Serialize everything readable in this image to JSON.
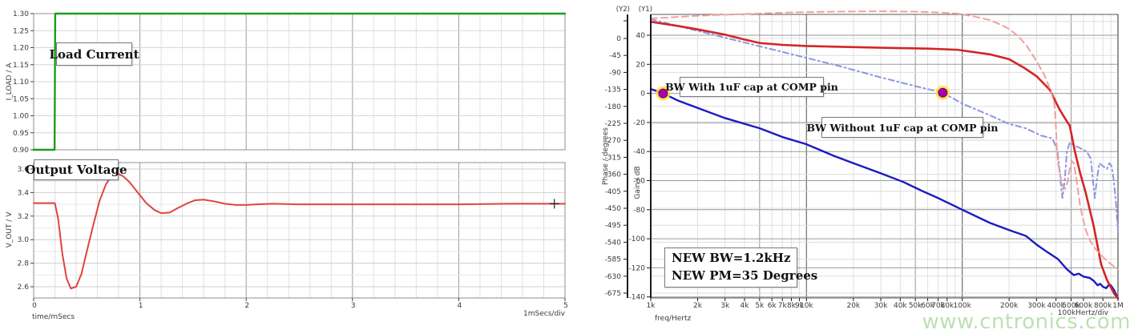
{
  "watermark": "www.cntronics.com",
  "chart_data": [
    {
      "id": "load-current",
      "type": "line",
      "title": "Load Current",
      "ylabel": "I_LOAD / A",
      "ylim": [
        0.9,
        1.3
      ],
      "xlim": [
        0,
        5
      ],
      "y_ticks": [
        "1.30",
        "1.25",
        "1.20",
        "1.15",
        "1.10",
        "1.05",
        "1.00",
        "0.95",
        "0.90"
      ],
      "grid": "on",
      "series": [
        {
          "name": "I_LOAD",
          "color": "#1f9b1f",
          "points": [
            [
              0,
              0.9
            ],
            [
              0.197,
              0.9
            ],
            [
              0.203,
              1.3
            ],
            [
              5,
              1.3
            ]
          ]
        }
      ]
    },
    {
      "id": "output-voltage",
      "type": "line",
      "title": "Output Voltage",
      "ylabel": "V_OUT / V",
      "xlabel": "time/mSecs",
      "x_div_label": "1mSecs/div",
      "ylim": [
        2.505,
        3.654
      ],
      "xlim": [
        0,
        5
      ],
      "x_ticks": [
        "0",
        "1",
        "2",
        "3",
        "4",
        "5"
      ],
      "y_ticks": [
        "3.6",
        "3.4",
        "3.2",
        "3.0",
        "2.8",
        "2.6"
      ],
      "grid": "on",
      "cursor": [
        4.9,
        3.305
      ],
      "series": [
        {
          "name": "V_OUT",
          "color": "#e04343",
          "points": [
            [
              0,
              3.31
            ],
            [
              0.2,
              3.31
            ],
            [
              0.23,
              3.18
            ],
            [
              0.27,
              2.88
            ],
            [
              0.31,
              2.67
            ],
            [
              0.35,
              2.585
            ],
            [
              0.4,
              2.6
            ],
            [
              0.45,
              2.71
            ],
            [
              0.5,
              2.9
            ],
            [
              0.56,
              3.12
            ],
            [
              0.62,
              3.33
            ],
            [
              0.68,
              3.47
            ],
            [
              0.73,
              3.54
            ],
            [
              0.78,
              3.565
            ],
            [
              0.84,
              3.54
            ],
            [
              0.9,
              3.49
            ],
            [
              0.98,
              3.4
            ],
            [
              1.06,
              3.31
            ],
            [
              1.14,
              3.25
            ],
            [
              1.2,
              3.225
            ],
            [
              1.28,
              3.23
            ],
            [
              1.36,
              3.27
            ],
            [
              1.45,
              3.31
            ],
            [
              1.52,
              3.335
            ],
            [
              1.6,
              3.34
            ],
            [
              1.7,
              3.325
            ],
            [
              1.8,
              3.305
            ],
            [
              1.9,
              3.295
            ],
            [
              2.0,
              3.295
            ],
            [
              2.1,
              3.3
            ],
            [
              2.25,
              3.305
            ],
            [
              2.5,
              3.3
            ],
            [
              3.0,
              3.3
            ],
            [
              3.5,
              3.3
            ],
            [
              4.0,
              3.3
            ],
            [
              4.5,
              3.305
            ],
            [
              5.0,
              3.305
            ]
          ]
        }
      ]
    },
    {
      "id": "bode-plot",
      "type": "line",
      "xscale": "log",
      "xlabel": "freq/Hertz",
      "x_div_label": "100kHertz/div",
      "xlim": [
        1000,
        1000000
      ],
      "x_ticks": [
        [
          1000,
          "1k"
        ],
        [
          2000,
          "2k"
        ],
        [
          3000,
          "3k"
        ],
        [
          4000,
          "4k"
        ],
        [
          5000,
          "5k"
        ],
        [
          6000,
          "6k"
        ],
        [
          7000,
          "7k"
        ],
        [
          8000,
          "8k"
        ],
        [
          9000,
          "9k"
        ],
        [
          10000,
          "10k"
        ],
        [
          20000,
          "20k"
        ],
        [
          30000,
          "30k"
        ],
        [
          40000,
          "40k"
        ],
        [
          50000,
          "50k"
        ],
        [
          60000,
          "60k"
        ],
        [
          70000,
          "70k"
        ],
        [
          80000,
          "80k"
        ],
        [
          100000,
          "100k"
        ],
        [
          200000,
          "200k"
        ],
        [
          300000,
          "300k"
        ],
        [
          400000,
          "400k"
        ],
        [
          500000,
          "500k"
        ],
        [
          600000,
          "600k"
        ],
        [
          800000,
          "800k"
        ],
        [
          1000000,
          "1M"
        ]
      ],
      "y1_axis": {
        "tag": "(Y1)",
        "label": "Gain / dB",
        "lim": [
          -140.7,
          54.3
        ],
        "ticks": [
          "40",
          "20",
          "0",
          "-20",
          "-40",
          "-60",
          "-80",
          "-100",
          "-120",
          "-140"
        ]
      },
      "y2_axis": {
        "tag": "(Y2)",
        "label": "Phase / degrees",
        "lim": [
          -687.8,
          63.7
        ],
        "ticks": [
          "0",
          "-45",
          "-90",
          "-135",
          "-180",
          "-225",
          "-270",
          "-315",
          "-360",
          "-405",
          "-450",
          "-495",
          "-540",
          "-585",
          "-630",
          "-675"
        ]
      },
      "series": [
        {
          "name": "gain-with-1uF-cap",
          "axis": "y1",
          "color": "#1b1bc0",
          "width": 2.4,
          "dash": null,
          "points": [
            [
              1000,
              3
            ],
            [
              1200,
              0
            ],
            [
              1500,
              -5
            ],
            [
              2000,
              -10
            ],
            [
              3000,
              -17
            ],
            [
              5000,
              -24
            ],
            [
              7000,
              -30
            ],
            [
              10000,
              -35
            ],
            [
              15000,
              -43
            ],
            [
              20000,
              -48
            ],
            [
              30000,
              -55
            ],
            [
              42000,
              -61
            ],
            [
              55000,
              -67
            ],
            [
              70000,
              -72
            ],
            [
              100000,
              -80
            ],
            [
              150000,
              -89
            ],
            [
              200000,
              -94
            ],
            [
              256000,
              -98
            ],
            [
              300000,
              -104
            ],
            [
              350000,
              -109
            ],
            [
              412000,
              -114
            ],
            [
              470000,
              -121
            ],
            [
              520000,
              -125
            ],
            [
              560000,
              -124
            ],
            [
              600000,
              -126
            ],
            [
              660000,
              -127
            ],
            [
              700000,
              -129
            ],
            [
              740000,
              -132
            ],
            [
              770000,
              -131
            ],
            [
              800000,
              -133
            ],
            [
              840000,
              -134
            ],
            [
              870000,
              -132
            ],
            [
              900000,
              -132
            ],
            [
              940000,
              -135
            ],
            [
              1000000,
              -141
            ]
          ]
        },
        {
          "name": "gain-without-1uF-cap",
          "axis": "y1",
          "color": "#8d96e2",
          "width": 2,
          "dash": "7 4 2 4",
          "points": [
            [
              1000,
              51
            ],
            [
              2000,
              43
            ],
            [
              4000,
              35
            ],
            [
              8000,
              27
            ],
            [
              16000,
              19
            ],
            [
              30000,
              11
            ],
            [
              50000,
              5
            ],
            [
              75000,
              0.5
            ],
            [
              100000,
              -7
            ],
            [
              150000,
              -15
            ],
            [
              200000,
              -21
            ],
            [
              256000,
              -24
            ],
            [
              320000,
              -29
            ],
            [
              380000,
              -31
            ],
            [
              410000,
              -40
            ],
            [
              430000,
              -62
            ],
            [
              440000,
              -72
            ],
            [
              455000,
              -60
            ],
            [
              470000,
              -40
            ],
            [
              490000,
              -34
            ],
            [
              530000,
              -36
            ],
            [
              580000,
              -38
            ],
            [
              630000,
              -40
            ],
            [
              670000,
              -45
            ],
            [
              690000,
              -60
            ],
            [
              710000,
              -72
            ],
            [
              730000,
              -60
            ],
            [
              760000,
              -48
            ],
            [
              800000,
              -50
            ],
            [
              850000,
              -52
            ],
            [
              880000,
              -48
            ],
            [
              910000,
              -50
            ],
            [
              940000,
              -60
            ],
            [
              970000,
              -75
            ],
            [
              1000000,
              -95
            ]
          ]
        },
        {
          "name": "phase-with-1uF-cap",
          "axis": "y2",
          "color": "#d32525",
          "width": 2.6,
          "dash": null,
          "points": [
            [
              1000,
              44
            ],
            [
              1500,
              33
            ],
            [
              2000,
              24
            ],
            [
              3000,
              10
            ],
            [
              4000,
              -3
            ],
            [
              5000,
              -12
            ],
            [
              7000,
              -17
            ],
            [
              10000,
              -20
            ],
            [
              20000,
              -23
            ],
            [
              34000,
              -25
            ],
            [
              60000,
              -27
            ],
            [
              93000,
              -30
            ],
            [
              150000,
              -42
            ],
            [
              200000,
              -55
            ],
            [
              250000,
              -78
            ],
            [
              300000,
              -100
            ],
            [
              365000,
              -136
            ],
            [
              420000,
              -187
            ],
            [
              470000,
              -220
            ],
            [
              490000,
              -231
            ],
            [
              530000,
              -301
            ],
            [
              570000,
              -355
            ],
            [
              620000,
              -408
            ],
            [
              700000,
              -499
            ],
            [
              780000,
              -599
            ],
            [
              850000,
              -640
            ],
            [
              950000,
              -678
            ],
            [
              1000000,
              -688
            ]
          ]
        },
        {
          "name": "phase-without-1uF-cap",
          "axis": "y2",
          "color": "#efa0a0",
          "width": 2,
          "dash": "8 5",
          "points": [
            [
              1000,
              53
            ],
            [
              1500,
              57
            ],
            [
              2000,
              60
            ],
            [
              3000,
              63
            ],
            [
              5000,
              66
            ],
            [
              8000,
              69
            ],
            [
              15000,
              71
            ],
            [
              30000,
              72
            ],
            [
              50000,
              71
            ],
            [
              70000,
              69
            ],
            [
              93000,
              66
            ],
            [
              120000,
              58
            ],
            [
              150000,
              49
            ],
            [
              180000,
              35
            ],
            [
              200000,
              25
            ],
            [
              230000,
              5
            ],
            [
              260000,
              -20
            ],
            [
              300000,
              -60
            ],
            [
              340000,
              -100
            ],
            [
              370000,
              -140
            ],
            [
              390000,
              -170
            ],
            [
              398000,
              -220
            ],
            [
              405000,
              -290
            ],
            [
              412000,
              -330
            ],
            [
              430000,
              -371
            ],
            [
              445000,
              -395
            ],
            [
              460000,
              -398
            ],
            [
              475000,
              -380
            ],
            [
              490000,
              -344
            ],
            [
              505000,
              -325
            ],
            [
              520000,
              -330
            ],
            [
              540000,
              -371
            ],
            [
              570000,
              -440
            ],
            [
              590000,
              -470
            ],
            [
              620000,
              -507
            ],
            [
              660000,
              -535
            ],
            [
              700000,
              -552
            ],
            [
              760000,
              -570
            ],
            [
              850000,
              -590
            ],
            [
              950000,
              -605
            ],
            [
              1000000,
              -612
            ]
          ]
        }
      ],
      "markers": [
        {
          "name": "bw-marker-with-cap",
          "x": 1200,
          "y": 0,
          "axis": "y1",
          "fill": "#a800a8",
          "halo": "#ffe03c"
        },
        {
          "name": "bw-marker-without-cap",
          "x": 75000,
          "y": 0.5,
          "axis": "y1",
          "fill": "#a800a8",
          "halo": "#ffe03c"
        }
      ],
      "annotations": [
        {
          "text": "BW With 1uF cap at COMP pin"
        },
        {
          "text": "BW Without 1uF cap at COMP pin"
        },
        {
          "lines": [
            "NEW BW=1.2kHz",
            "NEW PM=35 Degrees"
          ]
        }
      ]
    }
  ]
}
